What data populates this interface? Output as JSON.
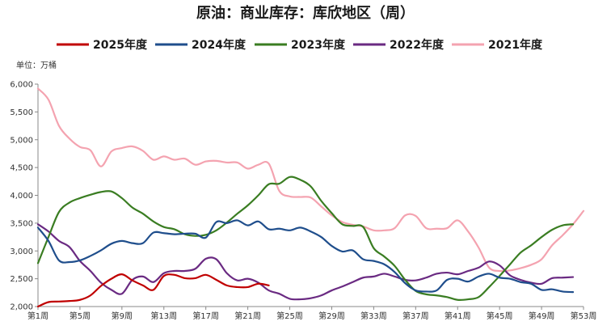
{
  "chart_data": {
    "type": "line",
    "title": "原油：商业库存：库欣地区（周）",
    "unit_label": "单位：万桶",
    "ylim": [
      2000,
      6000
    ],
    "yticks": [
      "2,000",
      "2,500",
      "3,000",
      "3,500",
      "4,000",
      "4,500",
      "5,000",
      "5,500",
      "6,000"
    ],
    "ytick_values": [
      2000,
      2500,
      3000,
      3500,
      4000,
      4500,
      5000,
      5500,
      6000
    ],
    "xlim": [
      1,
      53
    ],
    "xticks": [
      "第1周",
      "第5周",
      "第9周",
      "第13周",
      "第17周",
      "第21周",
      "第25周",
      "第29周",
      "第33周",
      "第37周",
      "第41周",
      "第45周",
      "第49周",
      "第53周"
    ],
    "xtick_values": [
      1,
      5,
      9,
      13,
      17,
      21,
      25,
      29,
      33,
      37,
      41,
      45,
      49,
      53
    ],
    "legend_position": "top",
    "grid": false,
    "series": [
      {
        "name": "2025年度",
        "color": "#c00000",
        "x": [
          1,
          2,
          3,
          4,
          5,
          6,
          7,
          8,
          9,
          10,
          11,
          12,
          13,
          14,
          15,
          16,
          17,
          18,
          19,
          20,
          21,
          22,
          23
        ],
        "y": [
          2000,
          2080,
          2090,
          2100,
          2120,
          2200,
          2370,
          2500,
          2580,
          2470,
          2380,
          2300,
          2550,
          2570,
          2510,
          2510,
          2570,
          2480,
          2380,
          2350,
          2350,
          2410,
          2380
        ]
      },
      {
        "name": "2024年度",
        "color": "#1f4e8c",
        "x": [
          1,
          2,
          3,
          4,
          5,
          6,
          7,
          8,
          9,
          10,
          11,
          12,
          13,
          14,
          15,
          16,
          17,
          18,
          19,
          20,
          21,
          22,
          23,
          24,
          25,
          26,
          27,
          28,
          29,
          30,
          31,
          32,
          33,
          34,
          35,
          36,
          37,
          38,
          39,
          40,
          41,
          42,
          43,
          44,
          45,
          46,
          47,
          48,
          49,
          50,
          51,
          52
        ],
        "y": [
          3420,
          3180,
          2830,
          2800,
          2830,
          2910,
          3010,
          3130,
          3180,
          3140,
          3140,
          3330,
          3320,
          3300,
          3310,
          3310,
          3240,
          3520,
          3500,
          3550,
          3460,
          3530,
          3390,
          3400,
          3370,
          3420,
          3350,
          3250,
          3090,
          2990,
          3010,
          2850,
          2820,
          2760,
          2620,
          2420,
          2290,
          2270,
          2290,
          2480,
          2500,
          2450,
          2540,
          2590,
          2520,
          2500,
          2440,
          2410,
          2300,
          2310,
          2270,
          2260
        ]
      },
      {
        "name": "2023年度",
        "color": "#3a7d22",
        "x": [
          1,
          2,
          3,
          4,
          5,
          6,
          7,
          8,
          9,
          10,
          11,
          12,
          13,
          14,
          15,
          16,
          17,
          18,
          19,
          20,
          21,
          22,
          23,
          24,
          25,
          26,
          27,
          28,
          29,
          30,
          31,
          32,
          33,
          34,
          35,
          36,
          37,
          38,
          39,
          40,
          41,
          42,
          43,
          44,
          45,
          46,
          47,
          48,
          49,
          50,
          51,
          52
        ],
        "y": [
          2780,
          3250,
          3700,
          3870,
          3950,
          4010,
          4060,
          4070,
          3950,
          3780,
          3670,
          3530,
          3430,
          3390,
          3300,
          3270,
          3290,
          3370,
          3510,
          3670,
          3820,
          4000,
          4200,
          4210,
          4330,
          4280,
          4160,
          3900,
          3680,
          3480,
          3450,
          3430,
          3050,
          2900,
          2730,
          2480,
          2280,
          2220,
          2200,
          2170,
          2120,
          2130,
          2170,
          2350,
          2550,
          2760,
          2970,
          3100,
          3250,
          3380,
          3460,
          3480
        ]
      },
      {
        "name": "2022年度",
        "color": "#6a2a82",
        "x": [
          1,
          2,
          3,
          4,
          5,
          6,
          7,
          8,
          9,
          10,
          11,
          12,
          13,
          14,
          15,
          16,
          17,
          18,
          19,
          20,
          21,
          22,
          23,
          24,
          25,
          26,
          27,
          28,
          29,
          30,
          31,
          32,
          33,
          34,
          35,
          36,
          37,
          38,
          39,
          40,
          41,
          42,
          43,
          44,
          45,
          46,
          47,
          48,
          49,
          50,
          51,
          52
        ],
        "y": [
          3480,
          3350,
          3180,
          3070,
          2820,
          2640,
          2430,
          2300,
          2230,
          2480,
          2540,
          2440,
          2600,
          2640,
          2640,
          2680,
          2860,
          2850,
          2600,
          2470,
          2500,
          2430,
          2290,
          2230,
          2140,
          2130,
          2150,
          2200,
          2290,
          2360,
          2440,
          2520,
          2540,
          2590,
          2540,
          2480,
          2470,
          2520,
          2590,
          2610,
          2580,
          2640,
          2700,
          2810,
          2740,
          2560,
          2480,
          2430,
          2410,
          2510,
          2520,
          2530
        ]
      },
      {
        "name": "2021年度",
        "color": "#f4a3b0",
        "x": [
          1,
          2,
          3,
          4,
          5,
          6,
          7,
          8,
          9,
          10,
          11,
          12,
          13,
          14,
          15,
          16,
          17,
          18,
          19,
          20,
          21,
          22,
          23,
          24,
          25,
          26,
          27,
          28,
          29,
          30,
          31,
          32,
          33,
          34,
          35,
          36,
          37,
          38,
          39,
          40,
          41,
          42,
          43,
          44,
          45,
          46,
          47,
          48,
          49,
          50,
          51,
          52,
          53
        ],
        "y": [
          5920,
          5720,
          5250,
          5020,
          4870,
          4810,
          4520,
          4790,
          4850,
          4880,
          4800,
          4640,
          4700,
          4640,
          4660,
          4550,
          4610,
          4620,
          4590,
          4590,
          4480,
          4550,
          4570,
          4080,
          3980,
          3970,
          3960,
          3800,
          3640,
          3520,
          3470,
          3440,
          3370,
          3370,
          3410,
          3640,
          3630,
          3410,
          3400,
          3410,
          3550,
          3350,
          3060,
          2700,
          2640,
          2650,
          2690,
          2750,
          2850,
          3100,
          3280,
          3480,
          3720
        ]
      }
    ]
  }
}
